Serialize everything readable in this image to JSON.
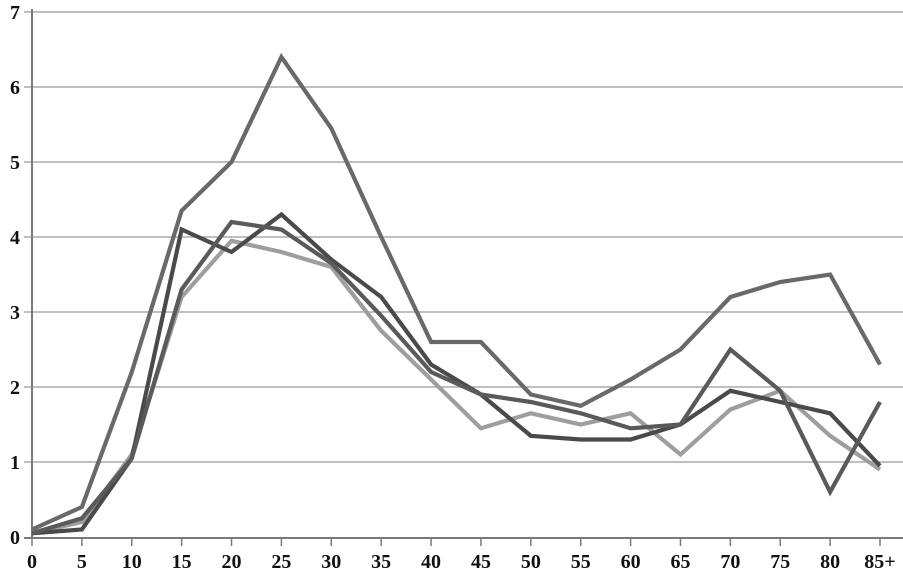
{
  "chart_data": {
    "type": "line",
    "title": "",
    "xlabel": "",
    "ylabel": "",
    "categories": [
      "0",
      "5",
      "10",
      "15",
      "20",
      "25",
      "30",
      "35",
      "40",
      "45",
      "50",
      "55",
      "60",
      "65",
      "70",
      "75",
      "80",
      "85+"
    ],
    "y_tick_labels": [
      "0",
      "1",
      "2",
      "3",
      "4",
      "5",
      "6",
      "7"
    ],
    "ylim": [
      0,
      7
    ],
    "grid": true,
    "legend_position": "none",
    "series": [
      {
        "name": "series-light-gray",
        "color": "#9e9e9e",
        "values": [
          0.05,
          0.2,
          1.1,
          3.2,
          3.95,
          3.8,
          3.6,
          2.75,
          2.1,
          1.45,
          1.65,
          1.5,
          1.65,
          1.1,
          1.7,
          1.95,
          1.35,
          0.9
        ]
      },
      {
        "name": "series-darkest-gray",
        "color": "#4a4a4a",
        "values": [
          0.05,
          0.1,
          1.05,
          4.1,
          3.8,
          4.3,
          3.7,
          3.2,
          2.3,
          1.9,
          1.35,
          1.3,
          1.3,
          1.5,
          1.95,
          1.8,
          1.65,
          0.95
        ]
      },
      {
        "name": "series-mid-dark-gray",
        "color": "#5a5a5a",
        "values": [
          0.05,
          0.25,
          1.05,
          3.3,
          4.2,
          4.1,
          3.65,
          2.95,
          2.2,
          1.9,
          1.8,
          1.65,
          1.45,
          1.5,
          2.5,
          1.95,
          0.6,
          1.8
        ]
      },
      {
        "name": "series-medium-gray-tall",
        "color": "#696969",
        "values": [
          0.1,
          0.4,
          2.2,
          4.35,
          5.0,
          6.4,
          5.45,
          4.0,
          2.6,
          2.6,
          1.9,
          1.75,
          2.1,
          2.5,
          3.2,
          3.4,
          3.5,
          2.3
        ]
      }
    ],
    "style": {
      "gridline_color": "#999999",
      "axis_color": "#7a7a7a",
      "label_color": "#111111",
      "line_width": 4.2
    }
  }
}
